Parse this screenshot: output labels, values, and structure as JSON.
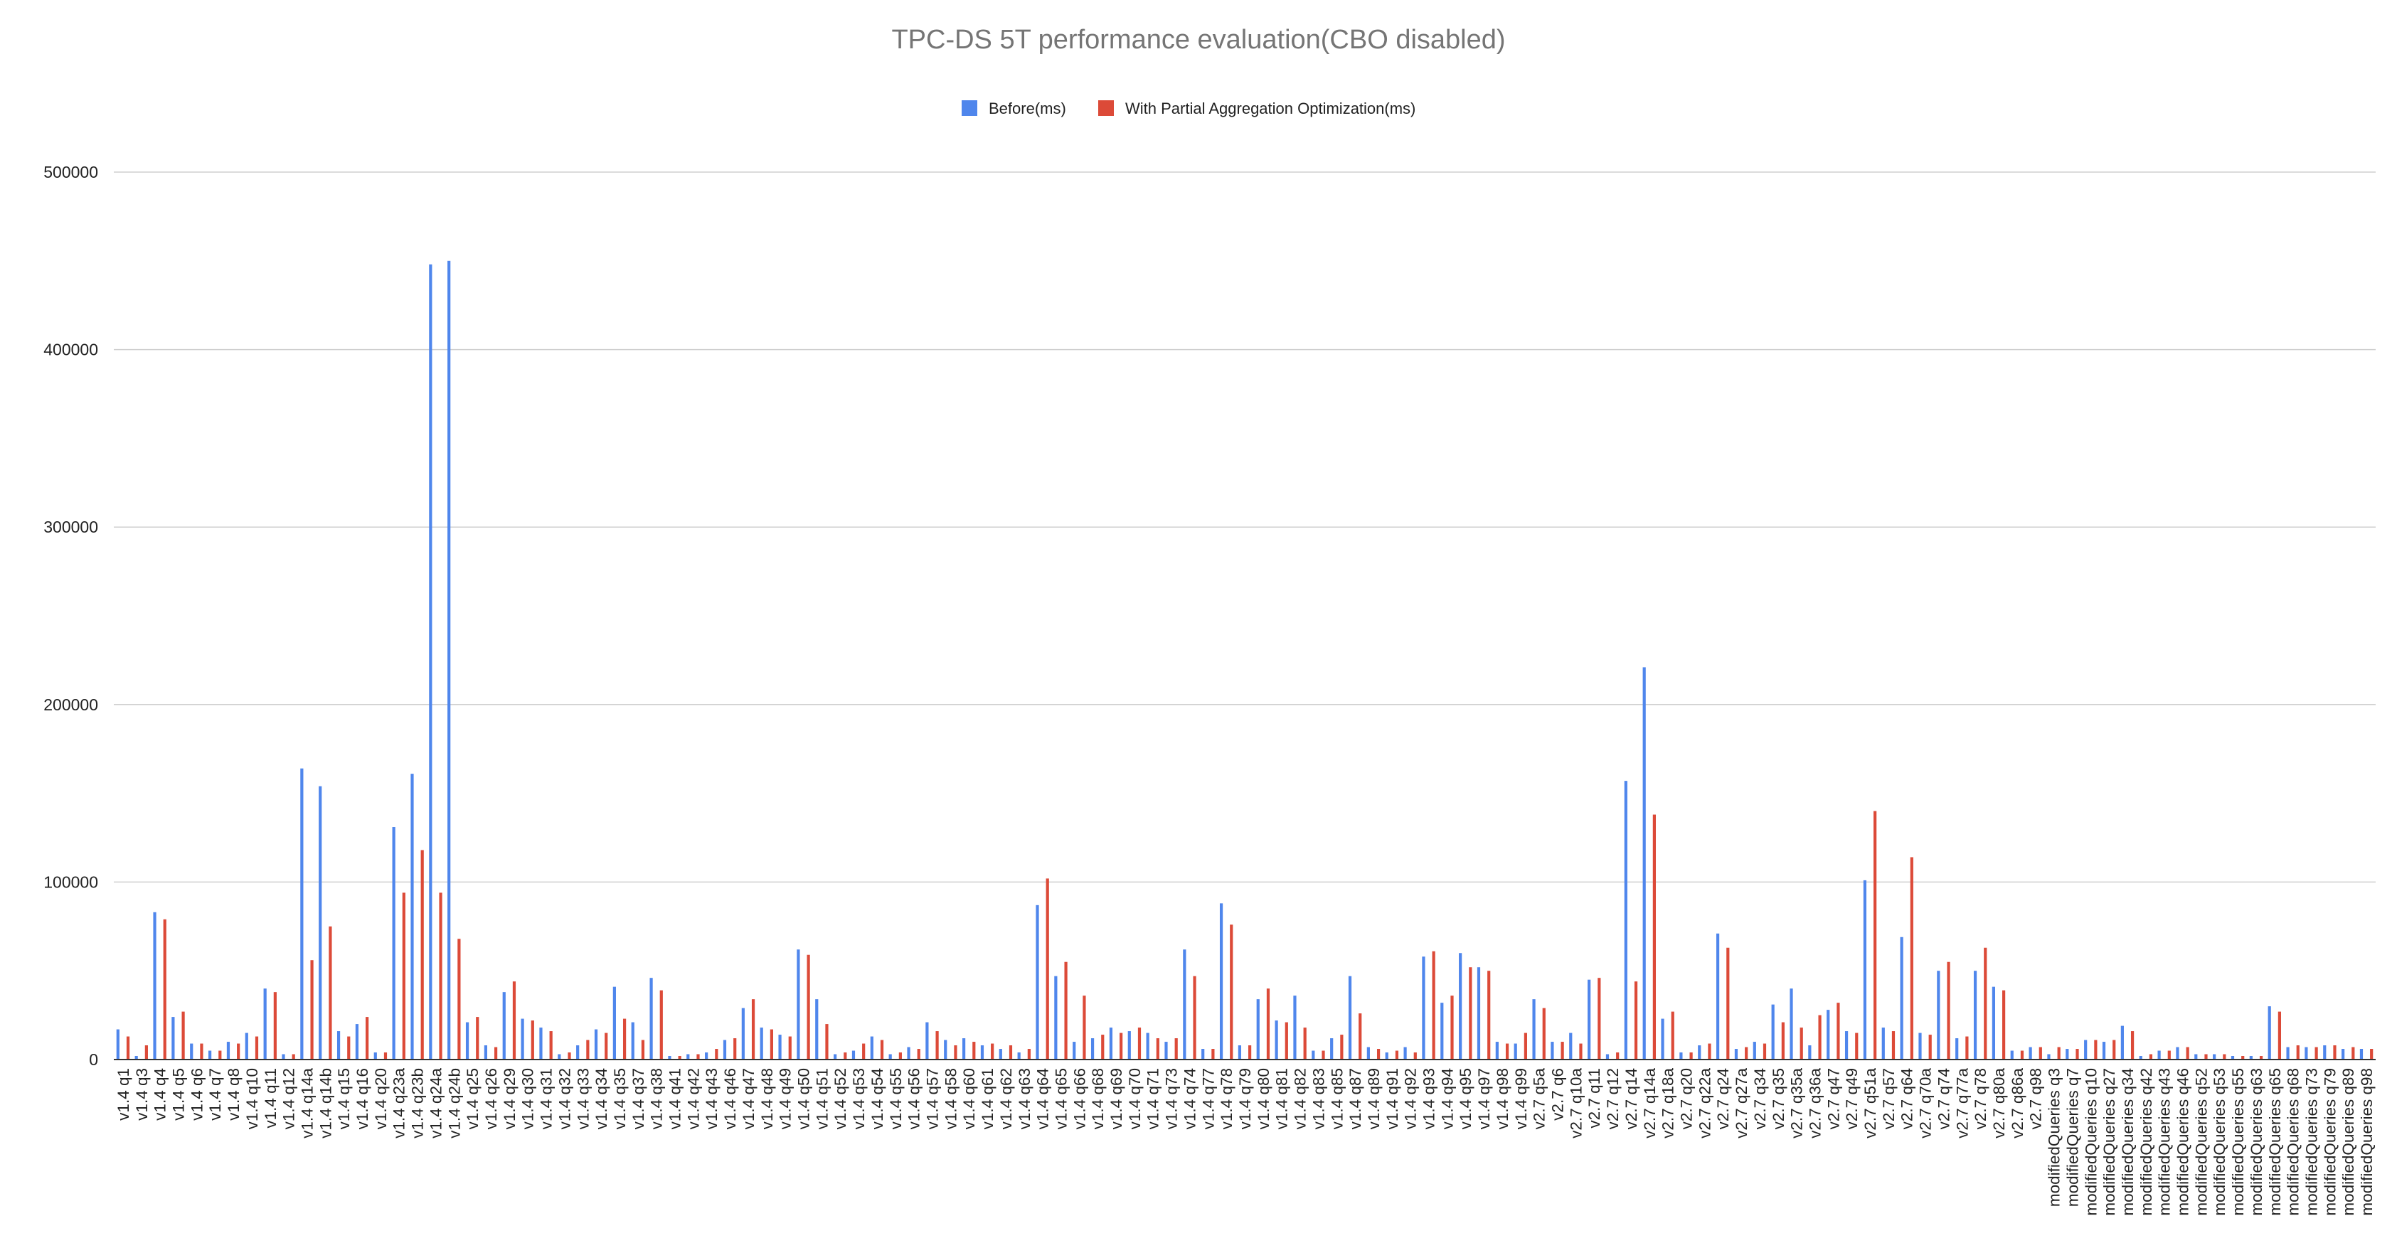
{
  "chart_data": {
    "type": "bar",
    "title": "TPC-DS 5T performance evaluation(CBO disabled)",
    "xlabel": "",
    "ylabel": "",
    "ylim": [
      0,
      500000
    ],
    "yticks": [
      0,
      100000,
      200000,
      300000,
      400000,
      500000
    ],
    "grid": true,
    "legend_position": "top",
    "colors": {
      "Before(ms)": "#4f86ec",
      "With Partial Aggregation Optimization(ms)": "#dc4a38"
    },
    "categories": [
      "v1.4 q1",
      "v1.4 q3",
      "v1.4 q4",
      "v1.4 q5",
      "v1.4 q6",
      "v1.4 q7",
      "v1.4 q8",
      "v1.4 q10",
      "v1.4 q11",
      "v1.4 q12",
      "v1.4 q14a",
      "v1.4 q14b",
      "v1.4 q15",
      "v1.4 q16",
      "v1.4 q20",
      "v1.4 q23a",
      "v1.4 q23b",
      "v1.4 q24a",
      "v1.4 q24b",
      "v1.4 q25",
      "v1.4 q26",
      "v1.4 q29",
      "v1.4 q30",
      "v1.4 q31",
      "v1.4 q32",
      "v1.4 q33",
      "v1.4 q34",
      "v1.4 q35",
      "v1.4 q37",
      "v1.4 q38",
      "v1.4 q41",
      "v1.4 q42",
      "v1.4 q43",
      "v1.4 q46",
      "v1.4 q47",
      "v1.4 q48",
      "v1.4 q49",
      "v1.4 q50",
      "v1.4 q51",
      "v1.4 q52",
      "v1.4 q53",
      "v1.4 q54",
      "v1.4 q55",
      "v1.4 q56",
      "v1.4 q57",
      "v1.4 q58",
      "v1.4 q60",
      "v1.4 q61",
      "v1.4 q62",
      "v1.4 q63",
      "v1.4 q64",
      "v1.4 q65",
      "v1.4 q66",
      "v1.4 q68",
      "v1.4 q69",
      "v1.4 q70",
      "v1.4 q71",
      "v1.4 q73",
      "v1.4 q74",
      "v1.4 q77",
      "v1.4 q78",
      "v1.4 q79",
      "v1.4 q80",
      "v1.4 q81",
      "v1.4 q82",
      "v1.4 q83",
      "v1.4 q85",
      "v1.4 q87",
      "v1.4 q89",
      "v1.4 q91",
      "v1.4 q92",
      "v1.4 q93",
      "v1.4 q94",
      "v1.4 q95",
      "v1.4 q97",
      "v1.4 q98",
      "v1.4 q99",
      "v2.7 q5a",
      "v2.7 q6",
      "v2.7 q10a",
      "v2.7 q11",
      "v2.7 q12",
      "v2.7 q14",
      "v2.7 q14a",
      "v2.7 q18a",
      "v2.7 q20",
      "v2.7 q22a",
      "v2.7 q24",
      "v2.7 q27a",
      "v2.7 q34",
      "v2.7 q35",
      "v2.7 q35a",
      "v2.7 q36a",
      "v2.7 q47",
      "v2.7 q49",
      "v2.7 q51a",
      "v2.7 q57",
      "v2.7 q64",
      "v2.7 q70a",
      "v2.7 q74",
      "v2.7 q77a",
      "v2.7 q78",
      "v2.7 q80a",
      "v2.7 q86a",
      "v2.7 q98",
      "modifiedQueries q3",
      "modifiedQueries q7",
      "modifiedQueries q10",
      "modifiedQueries q27",
      "modifiedQueries q34",
      "modifiedQueries q42",
      "modifiedQueries q43",
      "modifiedQueries q46",
      "modifiedQueries q52",
      "modifiedQueries q53",
      "modifiedQueries q55",
      "modifiedQueries q63",
      "modifiedQueries q65",
      "modifiedQueries q68",
      "modifiedQueries q73",
      "modifiedQueries q79",
      "modifiedQueries q89",
      "modifiedQueries q98"
    ],
    "series": [
      {
        "name": "Before(ms)",
        "values": [
          17000,
          2000,
          83000,
          24000,
          9000,
          5000,
          10000,
          15000,
          40000,
          3000,
          164000,
          154000,
          16000,
          20000,
          4000,
          131000,
          161000,
          448000,
          450000,
          21000,
          8000,
          38000,
          23000,
          18000,
          3000,
          8000,
          17000,
          41000,
          21000,
          46000,
          2000,
          3000,
          4000,
          11000,
          29000,
          18000,
          14000,
          62000,
          34000,
          3000,
          5000,
          13000,
          3000,
          7000,
          21000,
          11000,
          12000,
          8000,
          6000,
          4000,
          87000,
          47000,
          10000,
          12000,
          18000,
          16000,
          15000,
          10000,
          62000,
          6000,
          88000,
          8000,
          34000,
          22000,
          36000,
          5000,
          12000,
          47000,
          7000,
          4000,
          7000,
          58000,
          32000,
          60000,
          52000,
          10000,
          9000,
          34000,
          10000,
          15000,
          45000,
          3000,
          157000,
          221000,
          23000,
          4000,
          8000,
          71000,
          6000,
          10000,
          31000,
          40000,
          8000,
          28000,
          16000,
          101000,
          18000,
          69000,
          15000,
          50000,
          12000,
          50000,
          41000,
          5000,
          7000,
          3000,
          6000,
          11000,
          10000,
          19000,
          2000,
          5000,
          7000,
          3000,
          3000,
          2000,
          2000,
          30000,
          7000,
          7000,
          8000,
          6000,
          6000
        ]
      },
      {
        "name": "With Partial Aggregation Optimization(ms)",
        "values": [
          13000,
          8000,
          79000,
          27000,
          9000,
          5000,
          9000,
          13000,
          38000,
          3000,
          56000,
          75000,
          13000,
          24000,
          4000,
          94000,
          118000,
          94000,
          68000,
          24000,
          7000,
          44000,
          22000,
          16000,
          4000,
          11000,
          15000,
          23000,
          11000,
          39000,
          2000,
          3000,
          6000,
          12000,
          34000,
          17000,
          13000,
          59000,
          20000,
          4000,
          9000,
          11000,
          4000,
          6000,
          16000,
          8000,
          10000,
          9000,
          8000,
          6000,
          102000,
          55000,
          36000,
          14000,
          15000,
          18000,
          12000,
          12000,
          47000,
          6000,
          76000,
          8000,
          40000,
          21000,
          18000,
          5000,
          14000,
          26000,
          6000,
          5000,
          4000,
          61000,
          36000,
          52000,
          50000,
          9000,
          15000,
          29000,
          10000,
          9000,
          46000,
          4000,
          44000,
          138000,
          27000,
          4000,
          9000,
          63000,
          7000,
          9000,
          21000,
          18000,
          25000,
          32000,
          15000,
          140000,
          16000,
          114000,
          14000,
          55000,
          13000,
          63000,
          39000,
          5000,
          7000,
          7000,
          6000,
          11000,
          11000,
          16000,
          3000,
          5000,
          7000,
          3000,
          3000,
          2000,
          2000,
          27000,
          8000,
          7000,
          8000,
          7000,
          6000
        ]
      }
    ]
  }
}
